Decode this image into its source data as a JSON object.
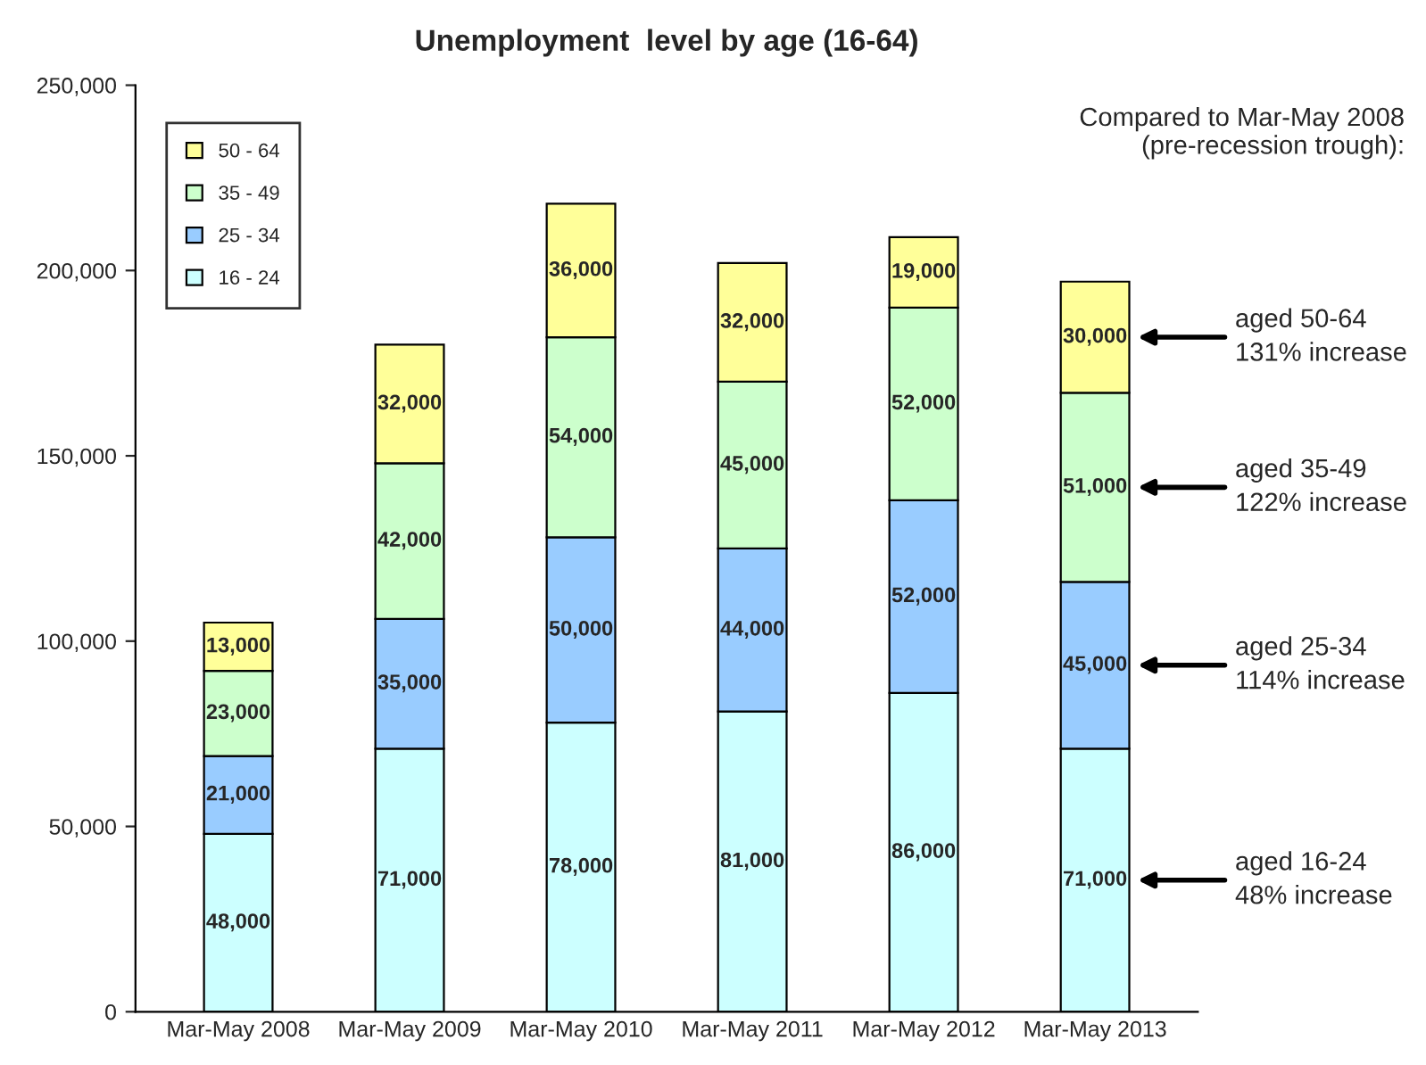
{
  "chart_data": {
    "type": "bar",
    "title": "Unemployment  level by age (16-64)",
    "categories": [
      "Mar-May 2008",
      "Mar-May 2009",
      "Mar-May 2010",
      "Mar-May 2011",
      "Mar-May 2012",
      "Mar-May 2013"
    ],
    "stacked": true,
    "series": [
      {
        "name": "16 - 24",
        "color": "#ccffff",
        "values": [
          48000,
          71000,
          78000,
          81000,
          86000,
          71000
        ],
        "value_labels": [
          "48,000",
          "71,000",
          "78,000",
          "81,000",
          "86,000",
          "71,000"
        ]
      },
      {
        "name": "25 - 34",
        "color": "#99ccff",
        "values": [
          21000,
          35000,
          50000,
          44000,
          52000,
          45000
        ],
        "value_labels": [
          "21,000",
          "35,000",
          "50,000",
          "44,000",
          "52,000",
          "45,000"
        ]
      },
      {
        "name": "35 - 49",
        "color": "#ccffcc",
        "values": [
          23000,
          42000,
          54000,
          45000,
          52000,
          51000
        ],
        "value_labels": [
          "23,000",
          "42,000",
          "54,000",
          "45,000",
          "52,000",
          "51,000"
        ]
      },
      {
        "name": "50 - 64",
        "color": "#ffff99",
        "values": [
          13000,
          32000,
          36000,
          32000,
          19000,
          30000
        ],
        "value_labels": [
          "13,000",
          "32,000",
          "36,000",
          "32,000",
          "19,000",
          "30,000"
        ]
      }
    ],
    "ylim": [
      0,
      250000
    ],
    "yticks": [
      0,
      {
        "value": 50000,
        "label": "50,000"
      },
      {
        "value": 100000,
        "label": "100,000"
      },
      {
        "value": 150000,
        "label": "150,000"
      },
      {
        "value": 200000,
        "label": "200,000"
      },
      {
        "value": 250000,
        "label": "250,000"
      }
    ],
    "grid": false,
    "legend": "top left",
    "annotations": [
      "Compared to Mar-May 2008\n(pre-recession trough):",
      "aged 50-64\n131% increase",
      "aged 35-49\n122% increase",
      "aged 25-34\n114% increase",
      "aged 16-24\n48% increase"
    ]
  }
}
